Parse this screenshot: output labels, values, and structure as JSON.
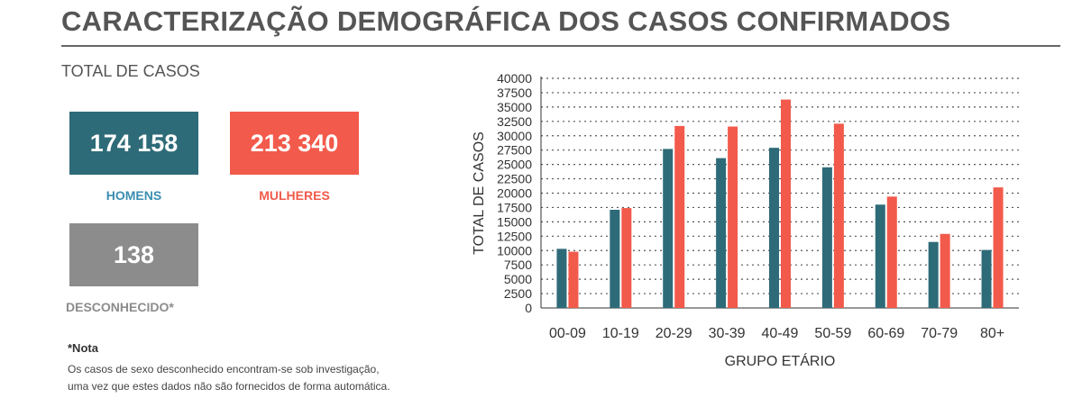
{
  "header": {
    "title": "CARACTERIZAÇÃO DEMOGRÁFICA DOS CASOS CONFIRMADOS"
  },
  "totals": {
    "heading": "TOTAL DE CASOS",
    "men": {
      "value": "174 158",
      "label": "HOMENS",
      "color": "#2e6b78",
      "label_color": "#3a8eb0"
    },
    "women": {
      "value": "213 340",
      "label": "MULHERES",
      "color": "#f25a4b"
    },
    "unknown": {
      "value": "138",
      "label": "DESCONHECIDO*",
      "color": "#8c8c8c"
    }
  },
  "note": {
    "title": "*Nota",
    "lines": [
      "Os casos de sexo desconhecido encontram-se sob investigação,",
      "uma vez que estes dados não são fornecidos de forma automática."
    ]
  },
  "chart_data": {
    "type": "bar",
    "categories": [
      "00-09",
      "10-19",
      "20-29",
      "30-39",
      "40-49",
      "50-59",
      "60-69",
      "70-79",
      "80+"
    ],
    "series": [
      {
        "values": [
          10300,
          17100,
          27700,
          26100,
          27900,
          24500,
          18000,
          11500,
          10100
        ],
        "color": "#2e6b78"
      },
      {
        "values": [
          9800,
          17400,
          31700,
          31600,
          36300,
          32100,
          19400,
          12900,
          21000
        ],
        "color": "#f25a4b"
      }
    ],
    "xlabel": "GRUPO ETÁRIO",
    "ylabel": "TOTAL DE CASOS",
    "ylim": [
      0,
      40000
    ],
    "yticks": [
      "0",
      "2500",
      "5000",
      "7500",
      "10000",
      "12500",
      "15000",
      "17500",
      "20000",
      "22500",
      "25000",
      "27500",
      "30000",
      "32500",
      "35000",
      "37500",
      "40000"
    ],
    "grid": true,
    "legend": "none"
  }
}
